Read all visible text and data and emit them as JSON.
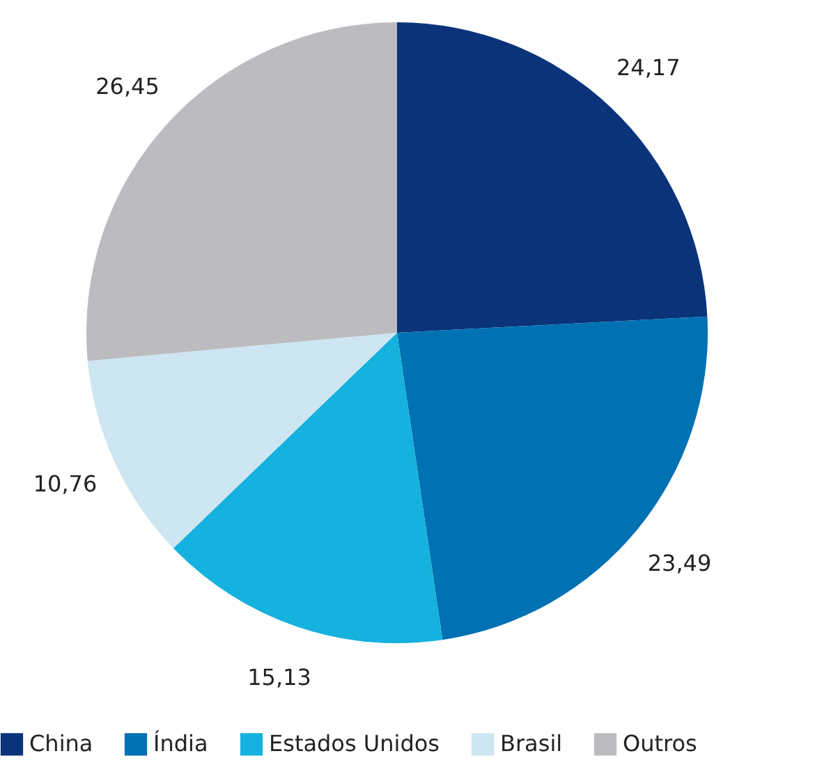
{
  "chart_data": {
    "type": "pie",
    "categories": [
      "China",
      "Índia",
      "Estados Unidos",
      "Brasil",
      "Outros"
    ],
    "values": [
      24.17,
      23.49,
      15.13,
      10.76,
      26.45
    ],
    "colors": [
      "#0a337a",
      "#0071b2",
      "#15b1df",
      "#cde6f1",
      "#bcbcc0"
    ],
    "value_labels": [
      "24,17",
      "23,49",
      "15,13",
      "10,76",
      "26,45"
    ],
    "legend": "bottom"
  }
}
